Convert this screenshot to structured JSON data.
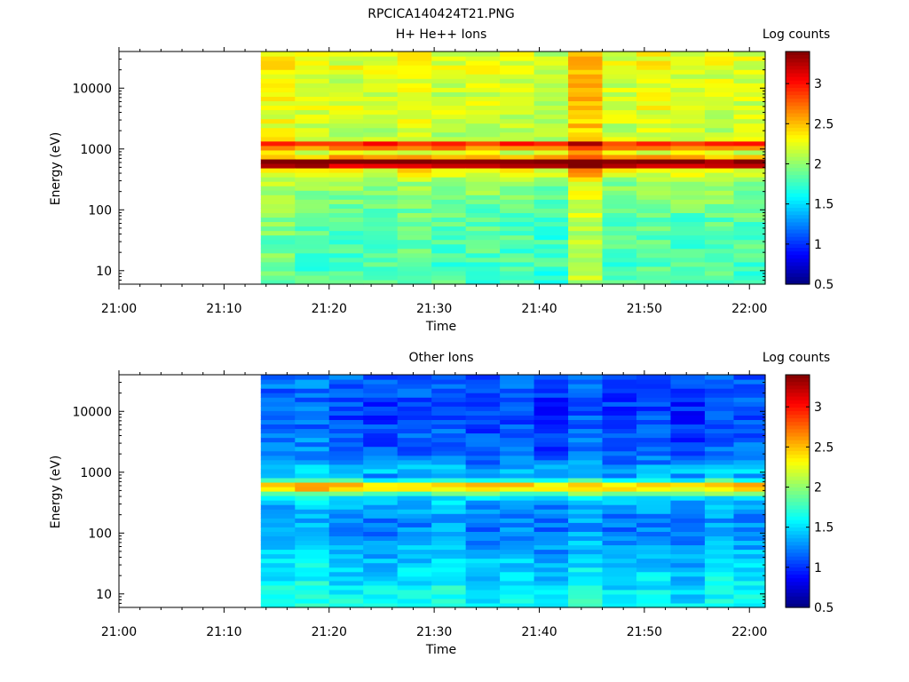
{
  "figure_title": "RPCICA140424T21.PNG",
  "chart_data": [
    {
      "type": "heatmap",
      "title": "H+ He++ Ions",
      "xlabel": "Time",
      "ylabel": "Energy (eV)",
      "yscale": "log",
      "x_ticks": [
        "21:00",
        "21:10",
        "21:20",
        "21:30",
        "21:40",
        "21:50",
        "22:00"
      ],
      "y_ticks": [
        "10",
        "100",
        "1000",
        "10000"
      ],
      "colorbar_label": "Log counts",
      "colorbar_ticks": [
        "0.5",
        "1",
        "1.5",
        "2",
        "2.5",
        "3"
      ],
      "colorbar_range": [
        0.5,
        3.4
      ],
      "data_time_range": [
        "21:13:30",
        "22:01:30"
      ],
      "energy_range_eV": [
        6,
        40000
      ],
      "time_bins": [
        "21:13:30",
        "21:16:45",
        "21:20:00",
        "21:23:15",
        "21:26:30",
        "21:29:45",
        "21:33:00",
        "21:36:15",
        "21:39:30",
        "21:42:45",
        "21:46:00",
        "21:49:15",
        "21:52:30",
        "21:55:45",
        "21:58:30"
      ],
      "profile": [
        {
          "E": 40000,
          "v": 2.2
        },
        {
          "E": 20000,
          "v": 2.25
        },
        {
          "E": 10000,
          "v": 2.15
        },
        {
          "E": 5000,
          "v": 2.2
        },
        {
          "E": 2500,
          "v": 2.15
        },
        {
          "E": 1500,
          "v": 2.1
        },
        {
          "E": 1250,
          "v": 2.9
        },
        {
          "E": 1150,
          "v": 3.3
        },
        {
          "E": 1000,
          "v": 2.3
        },
        {
          "E": 800,
          "v": 2.1
        },
        {
          "E": 650,
          "v": 3.4
        },
        {
          "E": 550,
          "v": 3.35
        },
        {
          "E": 450,
          "v": 2.3
        },
        {
          "E": 300,
          "v": 2.0
        },
        {
          "E": 150,
          "v": 1.95
        },
        {
          "E": 80,
          "v": 1.85
        },
        {
          "E": 30,
          "v": 1.8
        },
        {
          "E": 10,
          "v": 1.8
        },
        {
          "E": 6,
          "v": 1.8
        }
      ],
      "column_offsets": [
        0.1,
        0,
        0,
        0,
        0.05,
        0,
        0,
        0,
        -0.05,
        0.3,
        0,
        0.05,
        0,
        0,
        0
      ]
    },
    {
      "type": "heatmap",
      "title": "Other Ions",
      "xlabel": "Time",
      "ylabel": "Energy (eV)",
      "yscale": "log",
      "x_ticks": [
        "21:00",
        "21:10",
        "21:20",
        "21:30",
        "21:40",
        "21:50",
        "22:00"
      ],
      "y_ticks": [
        "10",
        "100",
        "1000",
        "10000"
      ],
      "colorbar_label": "Log counts",
      "colorbar_ticks": [
        "0.5",
        "1",
        "1.5",
        "2",
        "2.5",
        "3"
      ],
      "colorbar_range": [
        0.5,
        3.4
      ],
      "data_time_range": [
        "21:13:30",
        "22:01:30"
      ],
      "energy_range_eV": [
        6,
        40000
      ],
      "time_bins": [
        "21:13:30",
        "21:16:45",
        "21:20:00",
        "21:23:15",
        "21:26:30",
        "21:29:45",
        "21:33:00",
        "21:36:15",
        "21:39:30",
        "21:42:45",
        "21:46:00",
        "21:49:15",
        "21:52:30",
        "21:55:45",
        "21:58:30"
      ],
      "profile": [
        {
          "E": 40000,
          "v": 1.15
        },
        {
          "E": 20000,
          "v": 1.1
        },
        {
          "E": 10000,
          "v": 1.05
        },
        {
          "E": 5000,
          "v": 1.1
        },
        {
          "E": 2500,
          "v": 1.15
        },
        {
          "E": 1400,
          "v": 1.25
        },
        {
          "E": 1100,
          "v": 1.5
        },
        {
          "E": 900,
          "v": 1.3
        },
        {
          "E": 750,
          "v": 1.7
        },
        {
          "E": 650,
          "v": 2.4
        },
        {
          "E": 580,
          "v": 2.55
        },
        {
          "E": 500,
          "v": 2.2
        },
        {
          "E": 400,
          "v": 1.5
        },
        {
          "E": 250,
          "v": 1.3
        },
        {
          "E": 120,
          "v": 1.25
        },
        {
          "E": 50,
          "v": 1.4
        },
        {
          "E": 20,
          "v": 1.5
        },
        {
          "E": 10,
          "v": 1.6
        },
        {
          "E": 6,
          "v": 1.6
        }
      ],
      "column_offsets": [
        0.05,
        0.1,
        0,
        -0.05,
        0,
        0.05,
        -0.05,
        0,
        -0.1,
        0.05,
        -0.05,
        0,
        -0.1,
        0.05,
        0
      ]
    }
  ]
}
